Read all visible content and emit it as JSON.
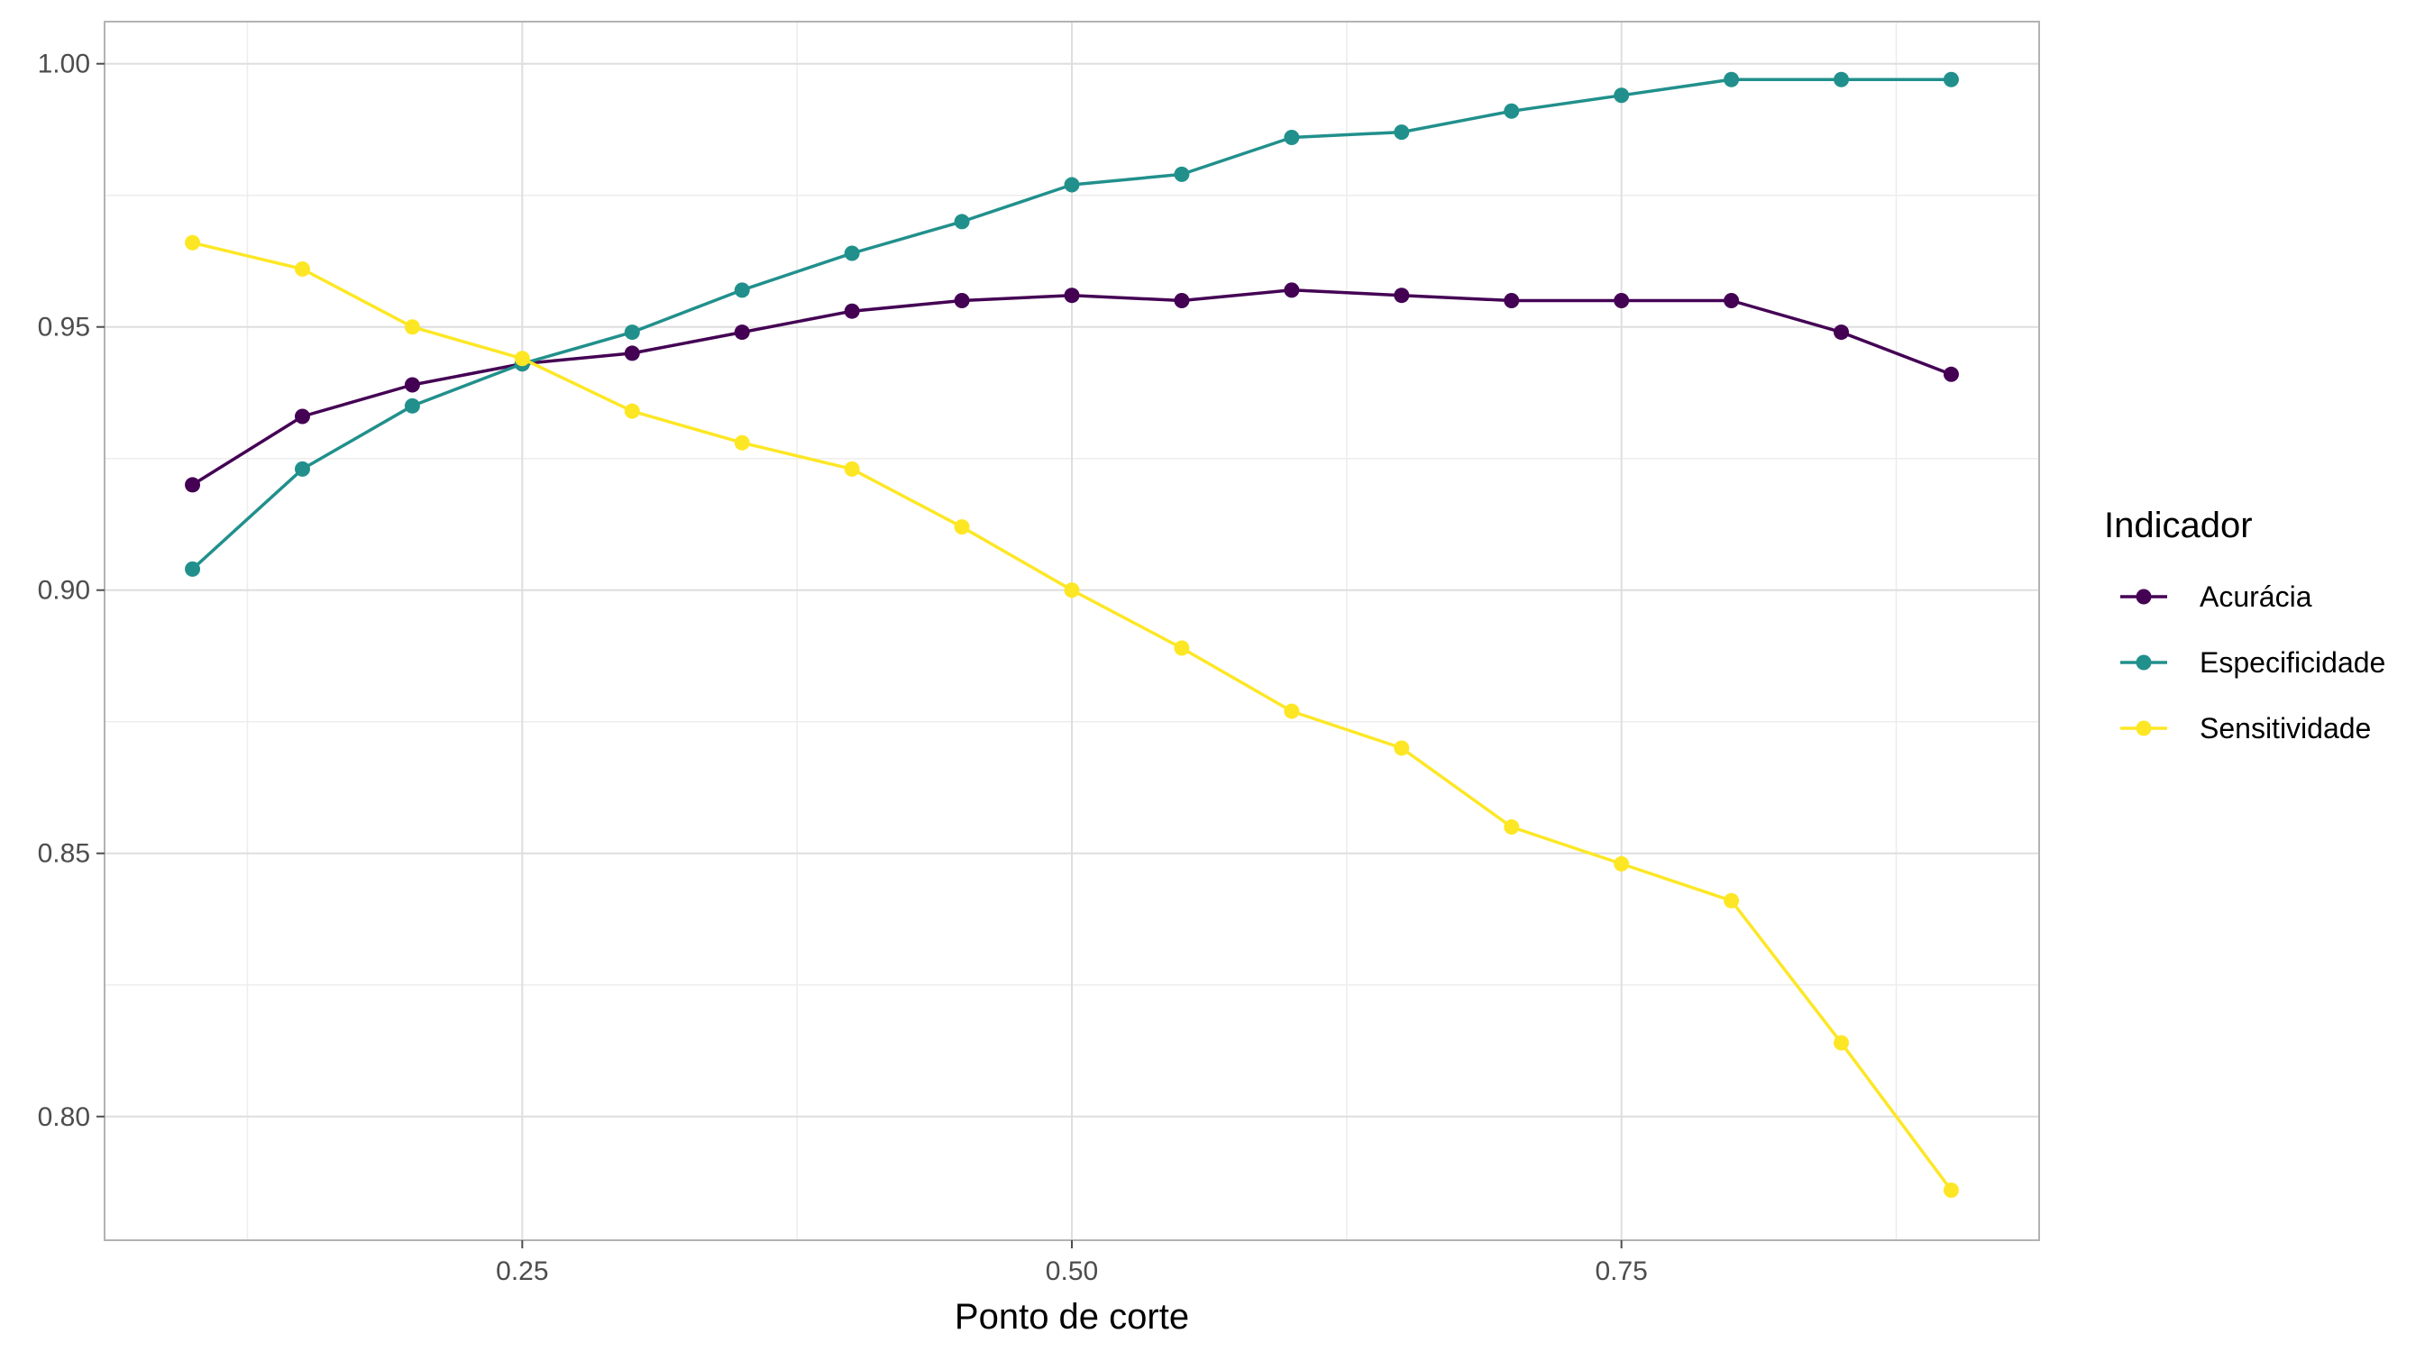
{
  "chart_data": {
    "type": "line",
    "title": "",
    "xlabel": "Ponto de corte",
    "ylabel": "",
    "xlim": [
      0.06,
      0.94
    ],
    "ylim": [
      0.7765,
      1.008
    ],
    "x_ticks": [
      0.25,
      0.5,
      0.75
    ],
    "x_tick_labels": [
      "0.25",
      "0.50",
      "0.75"
    ],
    "y_ticks": [
      0.8,
      0.85,
      0.9,
      0.95,
      1.0
    ],
    "y_tick_labels": [
      "0.80",
      "0.85",
      "0.90",
      "0.95",
      "1.00"
    ],
    "grid": true,
    "legend": {
      "title": "Indicador",
      "position": "right"
    },
    "x": [
      0.1,
      0.15,
      0.2,
      0.25,
      0.3,
      0.35,
      0.4,
      0.45,
      0.5,
      0.55,
      0.6,
      0.65,
      0.7,
      0.75,
      0.8,
      0.85,
      0.9
    ],
    "series": [
      {
        "name": "Acurácia",
        "color": "#440154",
        "values": [
          0.92,
          0.933,
          0.939,
          0.943,
          0.945,
          0.949,
          0.953,
          0.955,
          0.956,
          0.955,
          0.957,
          0.956,
          0.955,
          0.955,
          0.955,
          0.949,
          0.941
        ]
      },
      {
        "name": "Especificidade",
        "color": "#21908C",
        "values": [
          0.904,
          0.923,
          0.935,
          0.943,
          0.949,
          0.957,
          0.964,
          0.97,
          0.977,
          0.979,
          0.986,
          0.987,
          0.991,
          0.994,
          0.997,
          0.997,
          0.997
        ]
      },
      {
        "name": "Sensitividade",
        "color": "#FDE725",
        "values": [
          0.966,
          0.961,
          0.95,
          0.944,
          0.934,
          0.928,
          0.923,
          0.912,
          0.9,
          0.889,
          0.877,
          0.87,
          0.855,
          0.848,
          0.841,
          0.814,
          0.786
        ]
      }
    ]
  }
}
